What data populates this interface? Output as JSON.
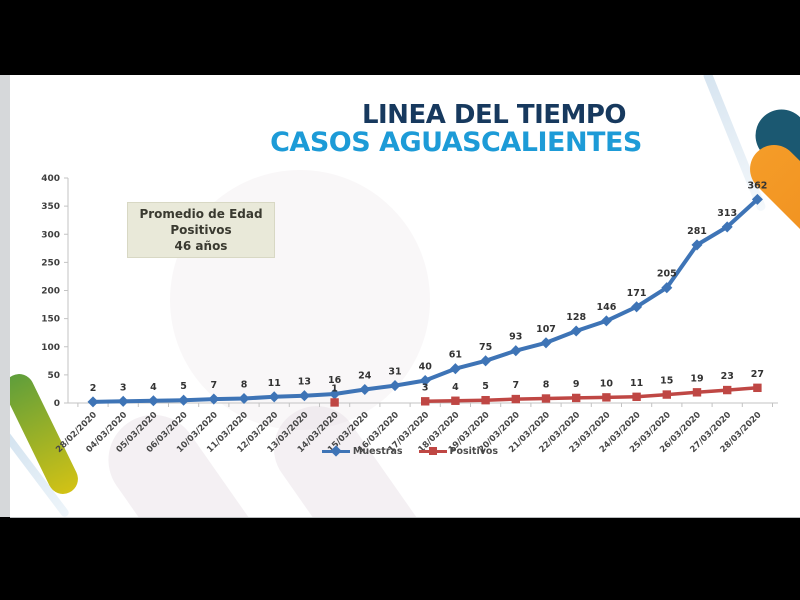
{
  "title": {
    "line1": "LINEA DEL TIEMPO",
    "line2": "CASOS AGUASCALIENTES"
  },
  "annotation_box": {
    "line1": "Promedio de Edad",
    "line2": "Positivos",
    "line3": "46 años"
  },
  "chart_data": {
    "type": "line",
    "title": "LINEA DEL TIEMPO - CASOS AGUASCALIENTES",
    "categories": [
      "28/02/2020",
      "04/03/2020",
      "05/03/2020",
      "06/03/2020",
      "10/03/2020",
      "11/03/2020",
      "12/03/2020",
      "13/03/2020",
      "14/03/2020",
      "15/03/2020",
      "16/03/2020",
      "17/03/2020",
      "18/03/2020",
      "19/03/2020",
      "20/03/2020",
      "21/03/2020",
      "22/03/2020",
      "23/03/2020",
      "24/03/2020",
      "25/03/2020",
      "26/03/2020",
      "27/03/2020",
      "28/03/2020"
    ],
    "series": [
      {
        "name": "Muestras",
        "color": "#3e74b6",
        "marker": "diamond",
        "line_width": 4,
        "values": [
          2,
          3,
          4,
          5,
          7,
          8,
          11,
          13,
          16,
          24,
          31,
          40,
          61,
          75,
          93,
          107,
          128,
          146,
          171,
          205,
          281,
          313,
          362
        ]
      },
      {
        "name": "Positivos",
        "color": "#bf4744",
        "marker": "square",
        "line_width": 3.5,
        "values": [
          null,
          null,
          null,
          null,
          null,
          null,
          null,
          null,
          1,
          null,
          null,
          3,
          4,
          5,
          7,
          8,
          9,
          10,
          11,
          15,
          19,
          23,
          27
        ]
      }
    ],
    "ylim": [
      0,
      400
    ],
    "ytick_step": 50,
    "grid": false,
    "data_labels": true,
    "legend_position": "bottom"
  },
  "colors": {
    "title_line1": "#17395e",
    "title_line2": "#1d9bd7",
    "muestras": "#3e74b6",
    "positivos": "#bf4744",
    "teal_bar": "#1b5871",
    "orange_bar": "#f2921e",
    "green_bar_top": "#5f9e3b",
    "green_bar_bottom": "#d2c215",
    "annotation_bg": "#e9e9d9",
    "letterbox": "#000000",
    "slide_bg": "#ffffff"
  }
}
